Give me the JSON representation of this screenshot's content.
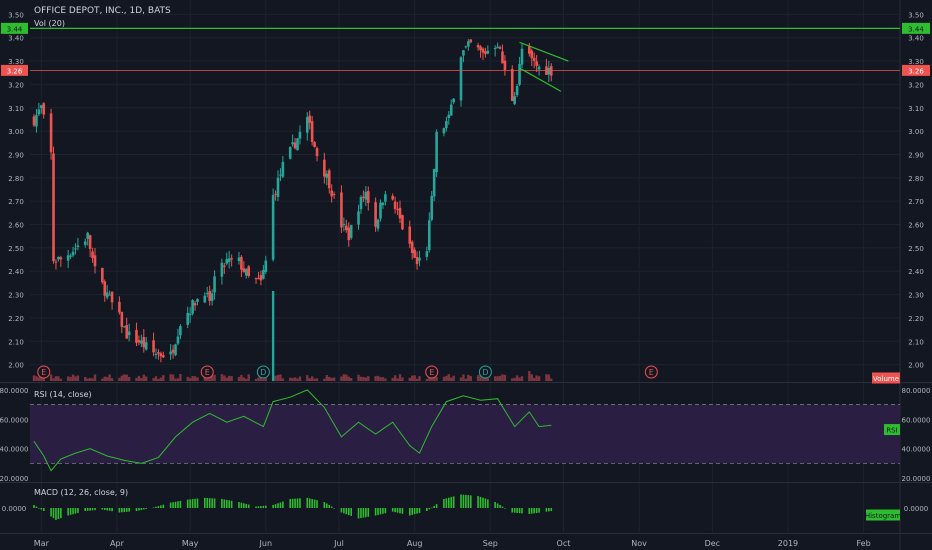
{
  "header": {
    "symbol": "OFFICE DEPOT, INC., 1D, BATS",
    "volume_label": "Vol (20)",
    "rsi_label": "RSI (14, close)",
    "macd_label": "MACD (12, 26, close, 9)"
  },
  "badges": {
    "resistance": "3.44",
    "last": "3.26",
    "rsi_tag": "RSI",
    "macd_tag": "Histogram",
    "volume_tag": "Volume"
  },
  "colors": {
    "background": "#131722",
    "grid": "#1e222d",
    "up": "#26a69a",
    "down": "#ef5350",
    "volume": "#7e3540",
    "rsi_line": "#2ebd2e",
    "rsi_band": "#2a1e43",
    "macd_hist": "#2ebd2e",
    "resistance_line": "#2ebd2e",
    "last_line": "#ef5350"
  },
  "chart_data": [
    {
      "type": "candlestick",
      "title": "OFFICE DEPOT, INC., 1D, BATS",
      "x_ticks": [
        "Mar",
        "Apr",
        "May",
        "Jun",
        "Jul",
        "Aug",
        "Sep",
        "Oct",
        "Nov",
        "Dec",
        "2019",
        "Feb"
      ],
      "y_ticks": [
        "2.00",
        "2.10",
        "2.20",
        "2.30",
        "2.40",
        "2.50",
        "2.60",
        "2.70",
        "2.80",
        "2.90",
        "3.00",
        "3.10",
        "3.20",
        "3.30",
        "3.40",
        "3.50"
      ],
      "ylim": [
        1.93,
        3.51
      ],
      "close_path": [
        [
          "2018-02-26",
          3.05
        ],
        [
          "2018-03-01",
          3.1
        ],
        [
          "2018-03-05",
          2.9
        ],
        [
          "2018-03-06",
          2.45
        ],
        [
          "2018-03-09",
          2.45
        ],
        [
          "2018-03-15",
          2.5
        ],
        [
          "2018-03-20",
          2.55
        ],
        [
          "2018-03-23",
          2.4
        ],
        [
          "2018-03-28",
          2.3
        ],
        [
          "2018-04-02",
          2.2
        ],
        [
          "2018-04-05",
          2.13
        ],
        [
          "2018-04-10",
          2.1
        ],
        [
          "2018-04-16",
          2.05
        ],
        [
          "2018-04-23",
          2.04
        ],
        [
          "2018-04-27",
          2.18
        ],
        [
          "2018-05-03",
          2.27
        ],
        [
          "2018-05-07",
          2.32
        ],
        [
          "2018-05-09",
          2.25
        ],
        [
          "2018-05-11",
          2.37
        ],
        [
          "2018-05-16",
          2.44
        ],
        [
          "2018-05-21",
          2.44
        ],
        [
          "2018-05-25",
          2.37
        ],
        [
          "2018-05-30",
          2.35
        ],
        [
          "2018-06-01",
          2.44
        ],
        [
          "2018-06-04",
          2.72
        ],
        [
          "2018-06-08",
          2.85
        ],
        [
          "2018-06-13",
          2.95
        ],
        [
          "2018-06-18",
          3.05
        ],
        [
          "2018-06-22",
          2.9
        ],
        [
          "2018-06-27",
          2.78
        ],
        [
          "2018-07-02",
          2.6
        ],
        [
          "2018-07-05",
          2.55
        ],
        [
          "2018-07-09",
          2.68
        ],
        [
          "2018-07-12",
          2.74
        ],
        [
          "2018-07-16",
          2.6
        ],
        [
          "2018-07-20",
          2.75
        ],
        [
          "2018-07-25",
          2.65
        ],
        [
          "2018-07-30",
          2.5
        ],
        [
          "2018-08-02",
          2.43
        ],
        [
          "2018-08-06",
          2.5
        ],
        [
          "2018-08-08",
          2.7
        ],
        [
          "2018-08-10",
          2.98
        ],
        [
          "2018-08-15",
          3.05
        ],
        [
          "2018-08-20",
          3.33
        ],
        [
          "2018-08-24",
          3.37
        ],
        [
          "2018-08-29",
          3.33
        ],
        [
          "2018-09-04",
          3.38
        ],
        [
          "2018-09-07",
          3.25
        ],
        [
          "2018-09-10",
          3.14
        ],
        [
          "2018-09-12",
          3.2
        ],
        [
          "2018-09-14",
          3.35
        ],
        [
          "2018-09-18",
          3.3
        ],
        [
          "2018-09-21",
          3.27
        ],
        [
          "2018-09-26",
          3.26
        ]
      ],
      "resistance": 3.44,
      "last_price": 3.26,
      "wedge": {
        "upper": [
          [
            "2018-09-13",
            3.38
          ],
          [
            "2018-10-03",
            3.3
          ]
        ],
        "lower": [
          [
            "2018-09-13",
            3.27
          ],
          [
            "2018-09-30",
            3.17
          ]
        ]
      },
      "earnings_markers": [
        {
          "date": "2018-03-02",
          "label": "E"
        },
        {
          "date": "2018-05-08",
          "label": "E"
        },
        {
          "date": "2018-05-31",
          "label": "D"
        },
        {
          "date": "2018-08-08",
          "label": "E"
        },
        {
          "date": "2018-08-30",
          "label": "D"
        },
        {
          "date": "2018-11-06",
          "label": "E"
        }
      ]
    },
    {
      "type": "line",
      "title": "RSI (14, close)",
      "y_ticks": [
        "20.0000",
        "40.0000",
        "60.0000",
        "80.0000"
      ],
      "ylim": [
        18,
        84
      ],
      "band": [
        30,
        70
      ],
      "points": [
        [
          "2018-02-26",
          45
        ],
        [
          "2018-03-02",
          35
        ],
        [
          "2018-03-05",
          25
        ],
        [
          "2018-03-09",
          33
        ],
        [
          "2018-03-15",
          37
        ],
        [
          "2018-03-21",
          40
        ],
        [
          "2018-03-28",
          35
        ],
        [
          "2018-04-04",
          32
        ],
        [
          "2018-04-11",
          30
        ],
        [
          "2018-04-18",
          34
        ],
        [
          "2018-04-25",
          48
        ],
        [
          "2018-05-02",
          58
        ],
        [
          "2018-05-09",
          64
        ],
        [
          "2018-05-16",
          58
        ],
        [
          "2018-05-23",
          62
        ],
        [
          "2018-05-31",
          55
        ],
        [
          "2018-06-04",
          72
        ],
        [
          "2018-06-11",
          75
        ],
        [
          "2018-06-18",
          80
        ],
        [
          "2018-06-25",
          68
        ],
        [
          "2018-07-02",
          48
        ],
        [
          "2018-07-09",
          58
        ],
        [
          "2018-07-16",
          50
        ],
        [
          "2018-07-23",
          58
        ],
        [
          "2018-07-30",
          42
        ],
        [
          "2018-08-03",
          37
        ],
        [
          "2018-08-08",
          55
        ],
        [
          "2018-08-14",
          72
        ],
        [
          "2018-08-21",
          76
        ],
        [
          "2018-08-28",
          73
        ],
        [
          "2018-09-04",
          74
        ],
        [
          "2018-09-11",
          55
        ],
        [
          "2018-09-17",
          65
        ],
        [
          "2018-09-21",
          55
        ],
        [
          "2018-09-26",
          56
        ]
      ]
    },
    {
      "type": "bar",
      "title": "MACD (12, 26, close, 9)",
      "y_ticks": [
        "0.0000"
      ],
      "ylim": [
        -0.08,
        0.08
      ],
      "series": [
        {
          "name": "Histogram",
          "points": [
            [
              "2018-02-26",
              0.01
            ],
            [
              "2018-03-02",
              -0.01
            ],
            [
              "2018-03-07",
              -0.04
            ],
            [
              "2018-03-12",
              -0.025
            ],
            [
              "2018-03-19",
              -0.01
            ],
            [
              "2018-03-26",
              -0.005
            ],
            [
              "2018-04-02",
              -0.015
            ],
            [
              "2018-04-09",
              -0.01
            ],
            [
              "2018-04-16",
              0.002
            ],
            [
              "2018-04-23",
              0.018
            ],
            [
              "2018-04-30",
              0.028
            ],
            [
              "2018-05-07",
              0.034
            ],
            [
              "2018-05-14",
              0.03
            ],
            [
              "2018-05-21",
              0.02
            ],
            [
              "2018-05-28",
              0.005
            ],
            [
              "2018-06-04",
              0.01
            ],
            [
              "2018-06-11",
              0.03
            ],
            [
              "2018-06-18",
              0.034
            ],
            [
              "2018-06-25",
              0.02
            ],
            [
              "2018-07-02",
              -0.015
            ],
            [
              "2018-07-09",
              -0.035
            ],
            [
              "2018-07-16",
              -0.025
            ],
            [
              "2018-07-23",
              -0.012
            ],
            [
              "2018-07-30",
              -0.025
            ],
            [
              "2018-08-06",
              -0.01
            ],
            [
              "2018-08-13",
              0.03
            ],
            [
              "2018-08-20",
              0.045
            ],
            [
              "2018-08-27",
              0.04
            ],
            [
              "2018-09-03",
              0.02
            ],
            [
              "2018-09-10",
              -0.015
            ],
            [
              "2018-09-17",
              -0.02
            ],
            [
              "2018-09-26",
              -0.01
            ]
          ]
        }
      ]
    }
  ]
}
